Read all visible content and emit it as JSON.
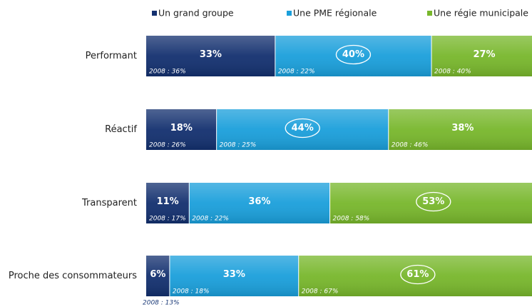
{
  "chart_data": {
    "type": "stacked-bar-horizontal",
    "categories": [
      "Performant",
      "Réactif",
      "Transparent",
      "Proche des consommateurs"
    ],
    "xlim": [
      0,
      100
    ],
    "series": [
      {
        "name": "Un grand groupe",
        "color": "#13306f",
        "values": [
          33,
          18,
          11,
          6
        ],
        "value_labels": [
          "33%",
          "18%",
          "11%",
          "6%"
        ],
        "notes": [
          "2008 : 36%",
          "2008 : 26%",
          "2008 : 17%",
          "2008 : 13%"
        ]
      },
      {
        "name": "Une PME régionale",
        "color": "#1a9fdb",
        "values": [
          40,
          44,
          36,
          33
        ],
        "value_labels": [
          "40%",
          "44%",
          "36%",
          "33%"
        ],
        "notes": [
          "2008 : 22%",
          "2008 : 25%",
          "2008 : 22%",
          "2008 : 18%"
        ]
      },
      {
        "name": "Une régie municipale",
        "color": "#78b72c",
        "values": [
          27,
          38,
          53,
          61
        ],
        "value_labels": [
          "27%",
          "38%",
          "53%",
          "61%"
        ],
        "notes": [
          "2008 : 40%",
          "2008 : 46%",
          "2008 : 58%",
          "2008 : 67%"
        ]
      }
    ]
  }
}
